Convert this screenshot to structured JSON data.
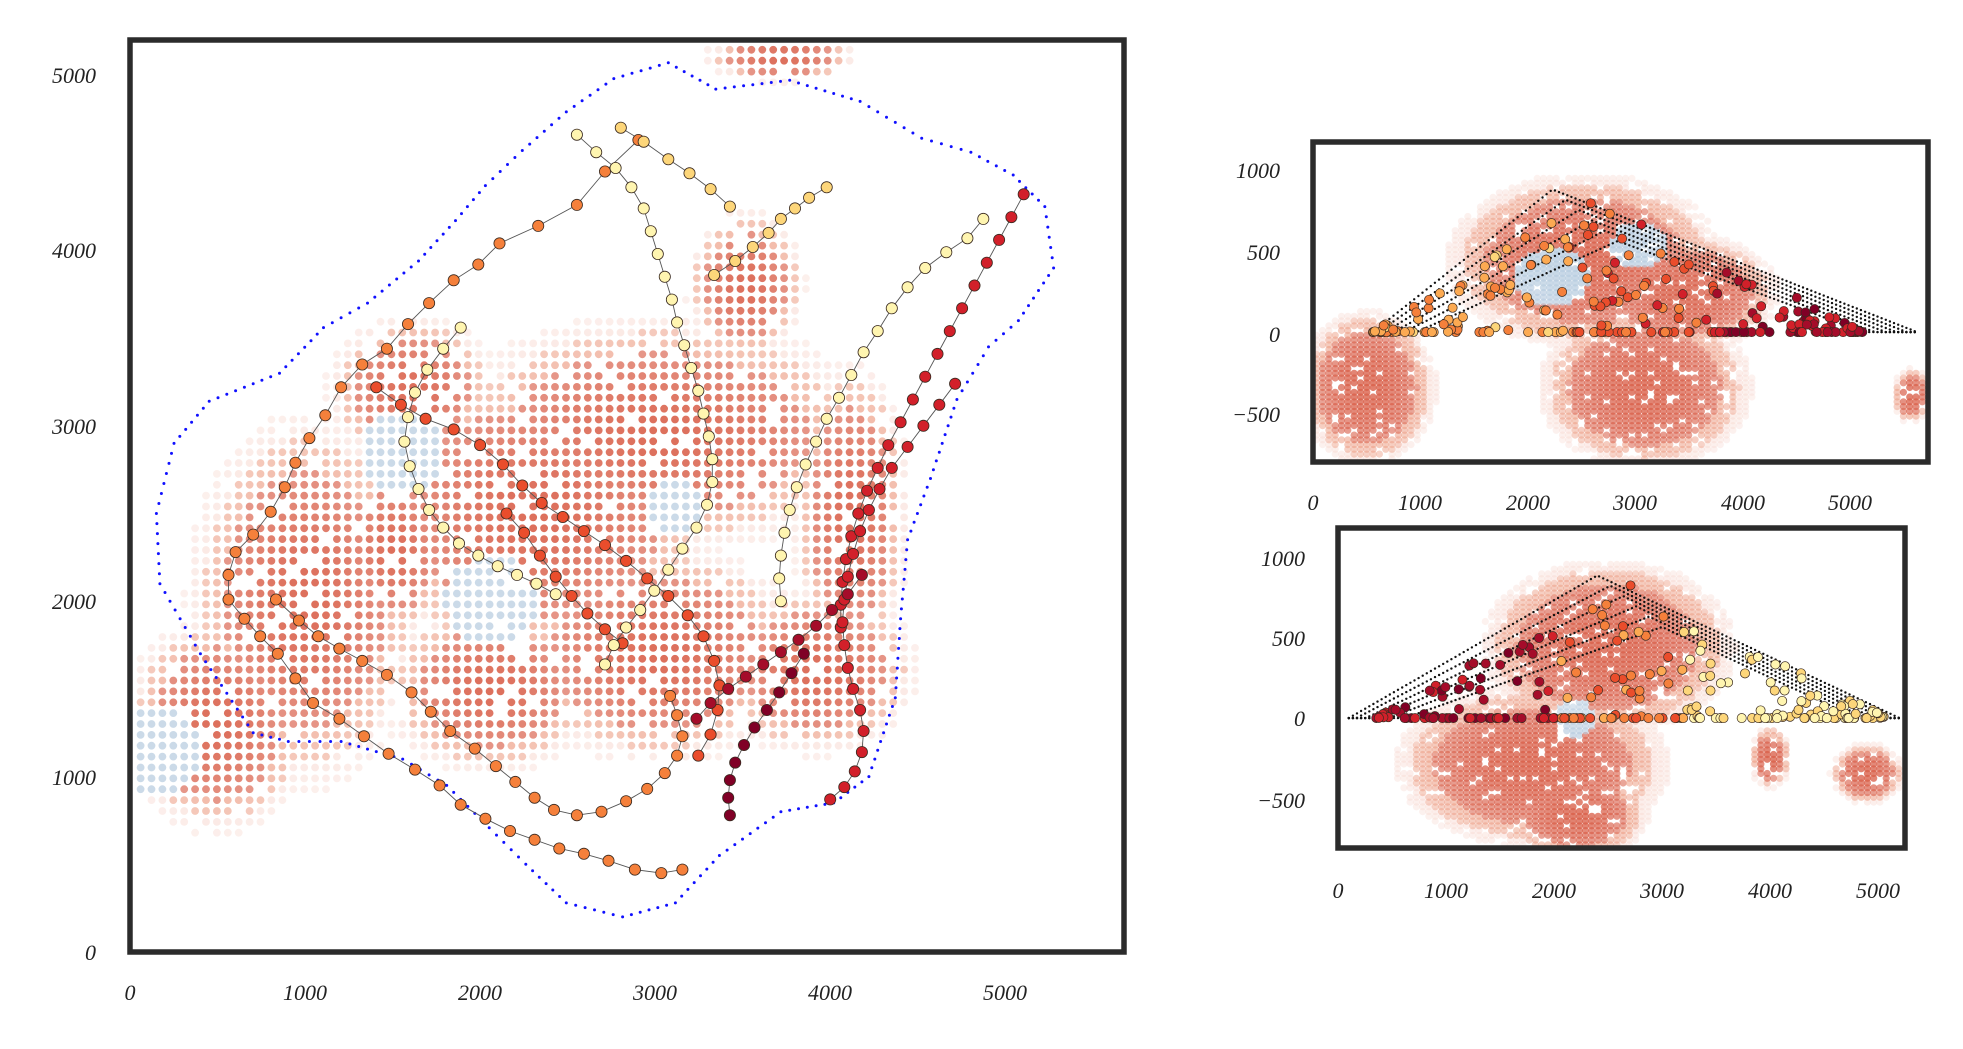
{
  "colors": {
    "frame": "#2b2b2b",
    "boundary": "#1010ff",
    "heat_light": "#f7d5cc",
    "heat_mid": "#ec9a80",
    "heat_dark": "#d9604a",
    "heat_cool": "#b9cde0",
    "edge": "#555555",
    "node_colors": [
      "#fff5b0",
      "#fdd67a",
      "#fcaa52",
      "#f5803b",
      "#ea4d2c",
      "#d2202a",
      "#a50c2a",
      "#800026"
    ]
  },
  "chart_data": [
    {
      "type": "scatter",
      "panel": "top-view",
      "xlim": [
        0,
        5650
      ],
      "ylim": [
        0,
        5200
      ],
      "xticks": [
        "0",
        "1000",
        "2000",
        "3000",
        "4000",
        "5000"
      ],
      "yticks": [
        "0",
        "1000",
        "2000",
        "3000",
        "4000",
        "5000"
      ],
      "grid": false,
      "legend": "none",
      "chains": [
        {
          "color_index": 3,
          "points": [
            [
              2890,
              4630
            ],
            [
              2700,
              4450
            ],
            [
              2540,
              4260
            ],
            [
              2320,
              4140
            ],
            [
              2100,
              4040
            ],
            [
              1980,
              3920
            ],
            [
              1840,
              3830
            ],
            [
              1700,
              3700
            ],
            [
              1580,
              3580
            ],
            [
              1460,
              3440
            ],
            [
              1320,
              3350
            ],
            [
              1200,
              3220
            ],
            [
              1110,
              3060
            ],
            [
              1020,
              2930
            ],
            [
              940,
              2790
            ],
            [
              880,
              2650
            ],
            [
              800,
              2510
            ],
            [
              700,
              2380
            ],
            [
              600,
              2280
            ],
            [
              560,
              2150
            ],
            [
              560,
              2010
            ],
            [
              650,
              1900
            ],
            [
              740,
              1800
            ],
            [
              840,
              1700
            ],
            [
              940,
              1560
            ],
            [
              1040,
              1420
            ],
            [
              1190,
              1330
            ],
            [
              1330,
              1230
            ],
            [
              1470,
              1130
            ],
            [
              1620,
              1040
            ],
            [
              1760,
              950
            ],
            [
              1880,
              840
            ],
            [
              2020,
              760
            ],
            [
              2160,
              690
            ],
            [
              2300,
              640
            ],
            [
              2440,
              590
            ],
            [
              2580,
              560
            ],
            [
              2720,
              520
            ],
            [
              2870,
              470
            ],
            [
              3020,
              450
            ],
            [
              3140,
              470
            ]
          ]
        },
        {
          "color_index": 3,
          "points": [
            [
              830,
              2010
            ],
            [
              960,
              1890
            ],
            [
              1070,
              1800
            ],
            [
              1190,
              1730
            ],
            [
              1320,
              1660
            ],
            [
              1460,
              1580
            ],
            [
              1600,
              1480
            ],
            [
              1710,
              1370
            ],
            [
              1820,
              1260
            ],
            [
              1960,
              1160
            ],
            [
              2080,
              1060
            ],
            [
              2190,
              970
            ],
            [
              2300,
              880
            ],
            [
              2410,
              810
            ],
            [
              2540,
              780
            ],
            [
              2680,
              800
            ],
            [
              2820,
              860
            ],
            [
              2940,
              930
            ],
            [
              3040,
              1020
            ],
            [
              3110,
              1120
            ],
            [
              3140,
              1230
            ],
            [
              3110,
              1350
            ],
            [
              3070,
              1460
            ]
          ]
        },
        {
          "color_index": 4,
          "points": [
            [
              1400,
              3220
            ],
            [
              1540,
              3120
            ],
            [
              1680,
              3040
            ],
            [
              1840,
              2980
            ],
            [
              1990,
              2890
            ],
            [
              2120,
              2780
            ],
            [
              2230,
              2660
            ],
            [
              2340,
              2560
            ],
            [
              2460,
              2480
            ],
            [
              2580,
              2400
            ],
            [
              2700,
              2320
            ],
            [
              2820,
              2230
            ],
            [
              2940,
              2130
            ],
            [
              3060,
              2030
            ],
            [
              3170,
              1920
            ],
            [
              3260,
              1800
            ],
            [
              3320,
              1660
            ],
            [
              3350,
              1520
            ],
            [
              3340,
              1380
            ],
            [
              3300,
              1240
            ],
            [
              3230,
              1120
            ]
          ]
        },
        {
          "color_index": 4,
          "points": [
            [
              2140,
              2500
            ],
            [
              2240,
              2390
            ],
            [
              2330,
              2260
            ],
            [
              2420,
              2140
            ],
            [
              2510,
              2030
            ],
            [
              2600,
              1930
            ],
            [
              2700,
              1840
            ],
            [
              2800,
              1760
            ]
          ]
        },
        {
          "color_index": 1,
          "points": [
            [
              3320,
              3860
            ],
            [
              3440,
              3940
            ],
            [
              3540,
              4020
            ],
            [
              3630,
              4100
            ],
            [
              3700,
              4180
            ],
            [
              3780,
              4240
            ],
            [
              3860,
              4300
            ],
            [
              3960,
              4360
            ]
          ]
        },
        {
          "color_index": 1,
          "points": [
            [
              2790,
              4700
            ],
            [
              2920,
              4620
            ],
            [
              3060,
              4520
            ],
            [
              3180,
              4440
            ],
            [
              3300,
              4350
            ],
            [
              3410,
              4250
            ]
          ]
        },
        {
          "color_index": 0,
          "points": [
            [
              2540,
              4660
            ],
            [
              2650,
              4560
            ],
            [
              2760,
              4470
            ],
            [
              2850,
              4360
            ],
            [
              2920,
              4240
            ],
            [
              2960,
              4110
            ],
            [
              3000,
              3980
            ],
            [
              3040,
              3850
            ],
            [
              3080,
              3720
            ],
            [
              3110,
              3590
            ],
            [
              3150,
              3460
            ],
            [
              3190,
              3330
            ],
            [
              3230,
              3200
            ],
            [
              3260,
              3070
            ],
            [
              3290,
              2940
            ],
            [
              3310,
              2810
            ],
            [
              3310,
              2680
            ],
            [
              3280,
              2550
            ],
            [
              3220,
              2420
            ],
            [
              3140,
              2300
            ],
            [
              3060,
              2180
            ],
            [
              2980,
              2060
            ],
            [
              2900,
              1950
            ],
            [
              2820,
              1850
            ],
            [
              2750,
              1750
            ],
            [
              2700,
              1640
            ]
          ]
        },
        {
          "color_index": 0,
          "points": [
            [
              1880,
              3560
            ],
            [
              1780,
              3440
            ],
            [
              1690,
              3320
            ],
            [
              1620,
              3190
            ],
            [
              1580,
              3050
            ],
            [
              1560,
              2910
            ],
            [
              1590,
              2770
            ],
            [
              1640,
              2640
            ],
            [
              1700,
              2520
            ],
            [
              1780,
              2420
            ],
            [
              1870,
              2330
            ],
            [
              1980,
              2260
            ],
            [
              2090,
              2200
            ],
            [
              2200,
              2150
            ],
            [
              2310,
              2100
            ],
            [
              2420,
              2040
            ]
          ]
        },
        {
          "color_index": 0,
          "points": [
            [
              4850,
              4180
            ],
            [
              4760,
              4070
            ],
            [
              4640,
              3990
            ],
            [
              4520,
              3900
            ],
            [
              4420,
              3790
            ],
            [
              4330,
              3670
            ],
            [
              4250,
              3540
            ],
            [
              4170,
              3420
            ],
            [
              4100,
              3290
            ],
            [
              4030,
              3160
            ],
            [
              3960,
              3040
            ],
            [
              3900,
              2910
            ],
            [
              3840,
              2780
            ],
            [
              3790,
              2650
            ],
            [
              3750,
              2520
            ],
            [
              3720,
              2390
            ],
            [
              3700,
              2260
            ],
            [
              3690,
              2130
            ],
            [
              3700,
              2000
            ]
          ]
        },
        {
          "color_index": 5,
          "points": [
            [
              5080,
              4320
            ],
            [
              5010,
              4190
            ],
            [
              4940,
              4060
            ],
            [
              4870,
              3930
            ],
            [
              4800,
              3800
            ],
            [
              4730,
              3670
            ],
            [
              4660,
              3540
            ],
            [
              4590,
              3410
            ],
            [
              4520,
              3280
            ],
            [
              4450,
              3150
            ],
            [
              4380,
              3020
            ],
            [
              4310,
              2890
            ],
            [
              4250,
              2760
            ],
            [
              4190,
              2630
            ],
            [
              4140,
              2500
            ],
            [
              4100,
              2370
            ],
            [
              4070,
              2240
            ],
            [
              4050,
              2110
            ],
            [
              4040,
              1980
            ],
            [
              4040,
              1850
            ]
          ]
        },
        {
          "color_index": 5,
          "points": [
            [
              4690,
              3240
            ],
            [
              4600,
              3120
            ],
            [
              4510,
              3000
            ],
            [
              4420,
              2880
            ],
            [
              4330,
              2760
            ],
            [
              4260,
              2640
            ],
            [
              4200,
              2520
            ],
            [
              4150,
              2400
            ],
            [
              4110,
              2270
            ],
            [
              4080,
              2140
            ],
            [
              4060,
              2010
            ],
            [
              4050,
              1880
            ],
            [
              4060,
              1750
            ],
            [
              4080,
              1620
            ],
            [
              4110,
              1500
            ],
            [
              4150,
              1380
            ],
            [
              4170,
              1260
            ],
            [
              4160,
              1140
            ],
            [
              4120,
              1030
            ],
            [
              4060,
              940
            ],
            [
              3980,
              870
            ]
          ]
        },
        {
          "color_index": 6,
          "points": [
            [
              4160,
              2150
            ],
            [
              4080,
              2040
            ],
            [
              3990,
              1950
            ],
            [
              3900,
              1860
            ],
            [
              3800,
              1780
            ],
            [
              3700,
              1710
            ],
            [
              3600,
              1640
            ],
            [
              3500,
              1570
            ],
            [
              3400,
              1500
            ],
            [
              3300,
              1420
            ],
            [
              3220,
              1330
            ]
          ]
        },
        {
          "color_index": 7,
          "points": [
            [
              3830,
              1700
            ],
            [
              3760,
              1590
            ],
            [
              3690,
              1480
            ],
            [
              3620,
              1380
            ],
            [
              3550,
              1280
            ],
            [
              3490,
              1180
            ],
            [
              3440,
              1080
            ],
            [
              3410,
              980
            ],
            [
              3400,
              880
            ],
            [
              3410,
              780
            ]
          ]
        }
      ]
    },
    {
      "type": "scatter",
      "panel": "side-view-x",
      "xlim": [
        0,
        5650
      ],
      "ylim": [
        -820,
        1200
      ],
      "xticks": [
        "0",
        "1000",
        "2000",
        "3000",
        "4000",
        "5000"
      ],
      "yticks": [
        "1000",
        "500",
        "0",
        "−500"
      ],
      "grid": false,
      "legend": "none"
    },
    {
      "type": "scatter",
      "panel": "side-view-y",
      "xlim": [
        0,
        5250
      ],
      "ylim": [
        -820,
        1200
      ],
      "xticks": [
        "0",
        "1000",
        "2000",
        "3000",
        "4000",
        "5000"
      ],
      "yticks": [
        "1000",
        "500",
        "0",
        "−500"
      ],
      "grid": false,
      "legend": "none"
    }
  ]
}
